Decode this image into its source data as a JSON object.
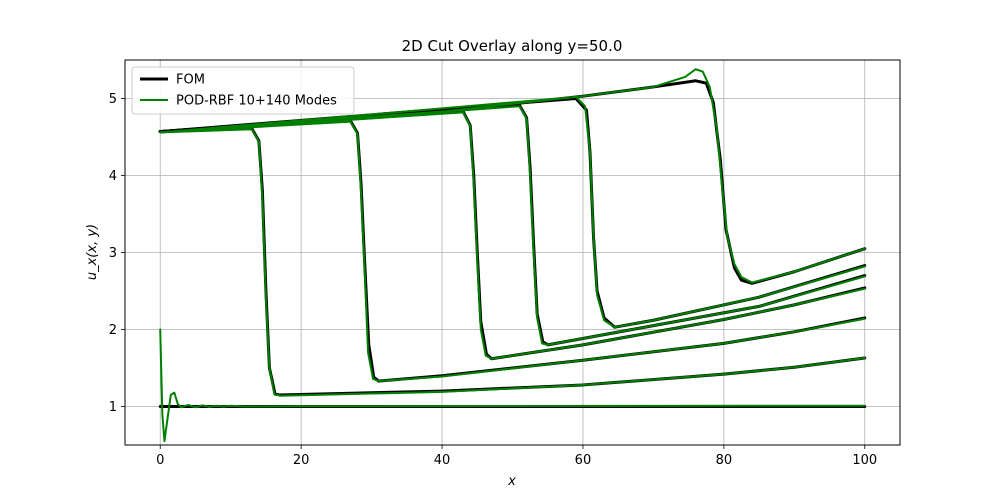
{
  "chart_data": {
    "type": "line",
    "title": "2D Cut Overlay along y=50.0",
    "xlabel": "x",
    "ylabel": "u_x(x, y)",
    "xlim": [
      -5,
      105
    ],
    "ylim": [
      0.5,
      5.5
    ],
    "xticks": [
      0,
      20,
      40,
      60,
      80,
      100
    ],
    "yticks": [
      1,
      2,
      3,
      4,
      5
    ],
    "grid": true,
    "legend_position": "top-left",
    "series": [
      {
        "name": "FOM",
        "color": "#000000",
        "width": 3,
        "curves": [
          [
            [
              0,
              1.0
            ],
            [
              100,
              1.0
            ]
          ],
          [
            [
              0,
              4.57
            ],
            [
              13,
              4.61
            ],
            [
              14,
              4.45
            ],
            [
              14.5,
              3.8
            ],
            [
              15,
              2.5
            ],
            [
              15.5,
              1.5
            ],
            [
              16.3,
              1.16
            ],
            [
              17,
              1.15
            ],
            [
              40,
              1.2
            ],
            [
              60,
              1.28
            ],
            [
              80,
              1.42
            ],
            [
              90,
              1.51
            ],
            [
              100,
              1.63
            ]
          ],
          [
            [
              0,
              4.57
            ],
            [
              27,
              4.71
            ],
            [
              28,
              4.55
            ],
            [
              28.5,
              3.9
            ],
            [
              29,
              2.9
            ],
            [
              29.6,
              1.8
            ],
            [
              30.3,
              1.38
            ],
            [
              31,
              1.33
            ],
            [
              40,
              1.4
            ],
            [
              60,
              1.6
            ],
            [
              80,
              1.82
            ],
            [
              90,
              1.97
            ],
            [
              100,
              2.15
            ]
          ],
          [
            [
              0,
              4.57
            ],
            [
              43,
              4.83
            ],
            [
              44,
              4.65
            ],
            [
              44.5,
              4.0
            ],
            [
              45,
              3.0
            ],
            [
              45.5,
              2.1
            ],
            [
              46.3,
              1.68
            ],
            [
              47,
              1.62
            ],
            [
              60,
              1.8
            ],
            [
              80,
              2.13
            ],
            [
              90,
              2.32
            ],
            [
              100,
              2.54
            ]
          ],
          [
            [
              0,
              4.57
            ],
            [
              51,
              4.91
            ],
            [
              52,
              4.75
            ],
            [
              52.5,
              4.1
            ],
            [
              53,
              3.1
            ],
            [
              53.5,
              2.2
            ],
            [
              54.3,
              1.84
            ],
            [
              55,
              1.8
            ],
            [
              70,
              2.05
            ],
            [
              85,
              2.3
            ],
            [
              100,
              2.7
            ]
          ],
          [
            [
              0,
              4.57
            ],
            [
              59,
              5.0
            ],
            [
              60.5,
              4.85
            ],
            [
              61,
              4.3
            ],
            [
              61.5,
              3.2
            ],
            [
              62,
              2.5
            ],
            [
              63,
              2.15
            ],
            [
              64.5,
              2.03
            ],
            [
              70,
              2.12
            ],
            [
              85,
              2.42
            ],
            [
              100,
              2.83
            ]
          ],
          [
            [
              0,
              4.57
            ],
            [
              20,
              4.7
            ],
            [
              40,
              4.83
            ],
            [
              60,
              5.03
            ],
            [
              70,
              5.15
            ],
            [
              76,
              5.23
            ],
            [
              77.5,
              5.2
            ],
            [
              78.5,
              4.95
            ],
            [
              79.5,
              4.2
            ],
            [
              80.3,
              3.3
            ],
            [
              81.5,
              2.8
            ],
            [
              82.5,
              2.64
            ],
            [
              84,
              2.6
            ],
            [
              90,
              2.75
            ],
            [
              100,
              3.05
            ]
          ]
        ]
      },
      {
        "name": "POD-RBF 10+140 Modes",
        "color": "#008000",
        "width": 2,
        "curves": [
          [
            [
              0,
              2.0
            ],
            [
              0.3,
              0.9
            ],
            [
              0.6,
              0.55
            ],
            [
              1.0,
              0.82
            ],
            [
              1.5,
              1.15
            ],
            [
              2.0,
              1.18
            ],
            [
              2.5,
              1.03
            ],
            [
              3.0,
              0.99
            ],
            [
              4,
              1.02
            ],
            [
              5,
              0.99
            ],
            [
              6,
              1.015
            ],
            [
              7,
              0.995
            ],
            [
              8,
              1.01
            ],
            [
              9,
              0.998
            ],
            [
              10,
              1.01
            ],
            [
              12,
              1.0
            ],
            [
              20,
              1.005
            ],
            [
              100,
              1.01
            ]
          ],
          [
            [
              0,
              4.56
            ],
            [
              13,
              4.6
            ],
            [
              14,
              4.44
            ],
            [
              14.5,
              3.7
            ],
            [
              15,
              2.4
            ],
            [
              15.5,
              1.5
            ],
            [
              16.2,
              1.16
            ],
            [
              17,
              1.14
            ],
            [
              40,
              1.19
            ],
            [
              60,
              1.28
            ],
            [
              80,
              1.42
            ],
            [
              90,
              1.51
            ],
            [
              100,
              1.63
            ]
          ],
          [
            [
              0,
              4.56
            ],
            [
              27,
              4.7
            ],
            [
              28,
              4.54
            ],
            [
              28.5,
              3.8
            ],
            [
              29,
              2.8
            ],
            [
              29.5,
              1.7
            ],
            [
              30.2,
              1.36
            ],
            [
              31,
              1.33
            ],
            [
              40,
              1.39
            ],
            [
              60,
              1.6
            ],
            [
              80,
              1.82
            ],
            [
              90,
              1.97
            ],
            [
              100,
              2.14
            ]
          ],
          [
            [
              0,
              4.56
            ],
            [
              43,
              4.82
            ],
            [
              44,
              4.64
            ],
            [
              44.5,
              3.9
            ],
            [
              45,
              2.9
            ],
            [
              45.5,
              2.0
            ],
            [
              46.2,
              1.66
            ],
            [
              47,
              1.62
            ],
            [
              60,
              1.8
            ],
            [
              80,
              2.13
            ],
            [
              90,
              2.32
            ],
            [
              100,
              2.53
            ]
          ],
          [
            [
              0,
              4.56
            ],
            [
              51,
              4.9
            ],
            [
              52,
              4.74
            ],
            [
              52.5,
              4.0
            ],
            [
              53,
              3.0
            ],
            [
              53.5,
              2.15
            ],
            [
              54.2,
              1.82
            ],
            [
              55,
              1.8
            ],
            [
              70,
              2.05
            ],
            [
              85,
              2.3
            ],
            [
              100,
              2.69
            ]
          ],
          [
            [
              0,
              4.56
            ],
            [
              59,
              5.02
            ],
            [
              60.3,
              4.9
            ],
            [
              61,
              4.3
            ],
            [
              61.5,
              3.2
            ],
            [
              62,
              2.45
            ],
            [
              63,
              2.12
            ],
            [
              64.5,
              2.03
            ],
            [
              70,
              2.12
            ],
            [
              85,
              2.42
            ],
            [
              100,
              2.82
            ]
          ],
          [
            [
              0,
              4.56
            ],
            [
              20,
              4.7
            ],
            [
              40,
              4.83
            ],
            [
              60,
              5.03
            ],
            [
              70,
              5.15
            ],
            [
              74.5,
              5.28
            ],
            [
              76,
              5.38
            ],
            [
              77,
              5.35
            ],
            [
              78,
              5.15
            ],
            [
              79,
              4.6
            ],
            [
              79.8,
              3.8
            ],
            [
              80.5,
              3.2
            ],
            [
              81.5,
              2.85
            ],
            [
              82.5,
              2.68
            ],
            [
              84,
              2.61
            ],
            [
              90,
              2.75
            ],
            [
              100,
              3.05
            ]
          ]
        ]
      }
    ]
  }
}
